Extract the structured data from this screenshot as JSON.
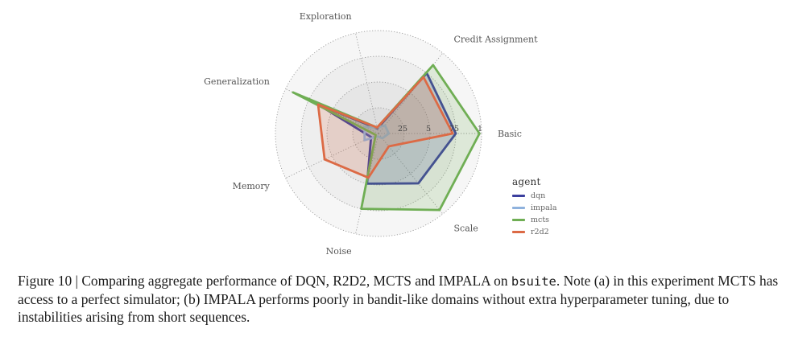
{
  "chart_data": {
    "type": "radar",
    "axes": [
      "Basic",
      "Credit Assignment",
      "Exploration",
      "Generalization",
      "Memory",
      "Noise",
      "Scale"
    ],
    "radial_ticks": [
      "25",
      "5",
      "75",
      "1"
    ],
    "rlim": [
      0,
      1
    ],
    "legend_title": "agent",
    "legend_position": "right",
    "series": [
      {
        "name": "dqn",
        "color": "#3b3f9e",
        "values": [
          0.75,
          0.75,
          0.05,
          0.65,
          0.08,
          0.5,
          0.62
        ]
      },
      {
        "name": "impala",
        "color": "#8fb2dd",
        "values": [
          0.1,
          0.1,
          0.06,
          0.15,
          0.15,
          0.03,
          0.06
        ]
      },
      {
        "name": "mcts",
        "color": "#6fae54",
        "values": [
          0.98,
          0.85,
          0.06,
          0.92,
          0.03,
          0.75,
          0.95
        ]
      },
      {
        "name": "r2d2",
        "color": "#dc6a45",
        "values": [
          0.72,
          0.7,
          0.06,
          0.65,
          0.58,
          0.44,
          0.16
        ]
      }
    ]
  },
  "caption": {
    "part1": "Figure 10 | Comparing aggregate performance of DQN, R2D2, MCTS and IMPALA on ",
    "code": "bsuite",
    "part2": ". Note (a) in this experiment MCTS has access to a perfect simulator; (b) IMPALA performs poorly in bandit-like domains without extra hyperparameter tuning, due to instabilities arising from short sequences."
  }
}
